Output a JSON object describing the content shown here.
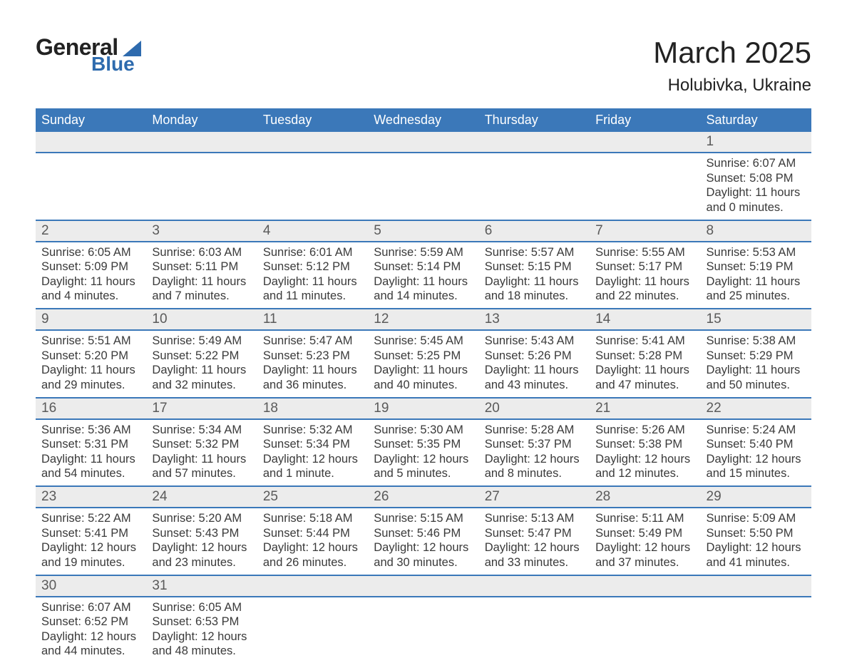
{
  "brand": {
    "name_part1": "General",
    "name_part2": "Blue",
    "accent_color": "#2e6bae",
    "text_color": "#222222"
  },
  "header": {
    "month_title": "March 2025",
    "location": "Holubivka, Ukraine"
  },
  "colors": {
    "header_bg": "#3b78b9",
    "header_text": "#ffffff",
    "daynum_bg": "#ececec",
    "daynum_text": "#5a5a5a",
    "body_text": "#3a3a3a",
    "row_border": "#3b78b9",
    "page_bg": "#ffffff"
  },
  "typography": {
    "title_fontsize": 42,
    "location_fontsize": 24,
    "weekday_fontsize": 18,
    "daynum_fontsize": 19,
    "detail_fontsize": 16.5,
    "font_family": "Arial"
  },
  "weekdays": [
    "Sunday",
    "Monday",
    "Tuesday",
    "Wednesday",
    "Thursday",
    "Friday",
    "Saturday"
  ],
  "weeks": [
    [
      null,
      null,
      null,
      null,
      null,
      null,
      {
        "n": "1",
        "sr": "Sunrise: 6:07 AM",
        "ss": "Sunset: 5:08 PM",
        "d1": "Daylight: 11 hours",
        "d2": "and 0 minutes."
      }
    ],
    [
      {
        "n": "2",
        "sr": "Sunrise: 6:05 AM",
        "ss": "Sunset: 5:09 PM",
        "d1": "Daylight: 11 hours",
        "d2": "and 4 minutes."
      },
      {
        "n": "3",
        "sr": "Sunrise: 6:03 AM",
        "ss": "Sunset: 5:11 PM",
        "d1": "Daylight: 11 hours",
        "d2": "and 7 minutes."
      },
      {
        "n": "4",
        "sr": "Sunrise: 6:01 AM",
        "ss": "Sunset: 5:12 PM",
        "d1": "Daylight: 11 hours",
        "d2": "and 11 minutes."
      },
      {
        "n": "5",
        "sr": "Sunrise: 5:59 AM",
        "ss": "Sunset: 5:14 PM",
        "d1": "Daylight: 11 hours",
        "d2": "and 14 minutes."
      },
      {
        "n": "6",
        "sr": "Sunrise: 5:57 AM",
        "ss": "Sunset: 5:15 PM",
        "d1": "Daylight: 11 hours",
        "d2": "and 18 minutes."
      },
      {
        "n": "7",
        "sr": "Sunrise: 5:55 AM",
        "ss": "Sunset: 5:17 PM",
        "d1": "Daylight: 11 hours",
        "d2": "and 22 minutes."
      },
      {
        "n": "8",
        "sr": "Sunrise: 5:53 AM",
        "ss": "Sunset: 5:19 PM",
        "d1": "Daylight: 11 hours",
        "d2": "and 25 minutes."
      }
    ],
    [
      {
        "n": "9",
        "sr": "Sunrise: 5:51 AM",
        "ss": "Sunset: 5:20 PM",
        "d1": "Daylight: 11 hours",
        "d2": "and 29 minutes."
      },
      {
        "n": "10",
        "sr": "Sunrise: 5:49 AM",
        "ss": "Sunset: 5:22 PM",
        "d1": "Daylight: 11 hours",
        "d2": "and 32 minutes."
      },
      {
        "n": "11",
        "sr": "Sunrise: 5:47 AM",
        "ss": "Sunset: 5:23 PM",
        "d1": "Daylight: 11 hours",
        "d2": "and 36 minutes."
      },
      {
        "n": "12",
        "sr": "Sunrise: 5:45 AM",
        "ss": "Sunset: 5:25 PM",
        "d1": "Daylight: 11 hours",
        "d2": "and 40 minutes."
      },
      {
        "n": "13",
        "sr": "Sunrise: 5:43 AM",
        "ss": "Sunset: 5:26 PM",
        "d1": "Daylight: 11 hours",
        "d2": "and 43 minutes."
      },
      {
        "n": "14",
        "sr": "Sunrise: 5:41 AM",
        "ss": "Sunset: 5:28 PM",
        "d1": "Daylight: 11 hours",
        "d2": "and 47 minutes."
      },
      {
        "n": "15",
        "sr": "Sunrise: 5:38 AM",
        "ss": "Sunset: 5:29 PM",
        "d1": "Daylight: 11 hours",
        "d2": "and 50 minutes."
      }
    ],
    [
      {
        "n": "16",
        "sr": "Sunrise: 5:36 AM",
        "ss": "Sunset: 5:31 PM",
        "d1": "Daylight: 11 hours",
        "d2": "and 54 minutes."
      },
      {
        "n": "17",
        "sr": "Sunrise: 5:34 AM",
        "ss": "Sunset: 5:32 PM",
        "d1": "Daylight: 11 hours",
        "d2": "and 57 minutes."
      },
      {
        "n": "18",
        "sr": "Sunrise: 5:32 AM",
        "ss": "Sunset: 5:34 PM",
        "d1": "Daylight: 12 hours",
        "d2": "and 1 minute."
      },
      {
        "n": "19",
        "sr": "Sunrise: 5:30 AM",
        "ss": "Sunset: 5:35 PM",
        "d1": "Daylight: 12 hours",
        "d2": "and 5 minutes."
      },
      {
        "n": "20",
        "sr": "Sunrise: 5:28 AM",
        "ss": "Sunset: 5:37 PM",
        "d1": "Daylight: 12 hours",
        "d2": "and 8 minutes."
      },
      {
        "n": "21",
        "sr": "Sunrise: 5:26 AM",
        "ss": "Sunset: 5:38 PM",
        "d1": "Daylight: 12 hours",
        "d2": "and 12 minutes."
      },
      {
        "n": "22",
        "sr": "Sunrise: 5:24 AM",
        "ss": "Sunset: 5:40 PM",
        "d1": "Daylight: 12 hours",
        "d2": "and 15 minutes."
      }
    ],
    [
      {
        "n": "23",
        "sr": "Sunrise: 5:22 AM",
        "ss": "Sunset: 5:41 PM",
        "d1": "Daylight: 12 hours",
        "d2": "and 19 minutes."
      },
      {
        "n": "24",
        "sr": "Sunrise: 5:20 AM",
        "ss": "Sunset: 5:43 PM",
        "d1": "Daylight: 12 hours",
        "d2": "and 23 minutes."
      },
      {
        "n": "25",
        "sr": "Sunrise: 5:18 AM",
        "ss": "Sunset: 5:44 PM",
        "d1": "Daylight: 12 hours",
        "d2": "and 26 minutes."
      },
      {
        "n": "26",
        "sr": "Sunrise: 5:15 AM",
        "ss": "Sunset: 5:46 PM",
        "d1": "Daylight: 12 hours",
        "d2": "and 30 minutes."
      },
      {
        "n": "27",
        "sr": "Sunrise: 5:13 AM",
        "ss": "Sunset: 5:47 PM",
        "d1": "Daylight: 12 hours",
        "d2": "and 33 minutes."
      },
      {
        "n": "28",
        "sr": "Sunrise: 5:11 AM",
        "ss": "Sunset: 5:49 PM",
        "d1": "Daylight: 12 hours",
        "d2": "and 37 minutes."
      },
      {
        "n": "29",
        "sr": "Sunrise: 5:09 AM",
        "ss": "Sunset: 5:50 PM",
        "d1": "Daylight: 12 hours",
        "d2": "and 41 minutes."
      }
    ],
    [
      {
        "n": "30",
        "sr": "Sunrise: 6:07 AM",
        "ss": "Sunset: 6:52 PM",
        "d1": "Daylight: 12 hours",
        "d2": "and 44 minutes."
      },
      {
        "n": "31",
        "sr": "Sunrise: 6:05 AM",
        "ss": "Sunset: 6:53 PM",
        "d1": "Daylight: 12 hours",
        "d2": "and 48 minutes."
      },
      null,
      null,
      null,
      null,
      null
    ]
  ]
}
